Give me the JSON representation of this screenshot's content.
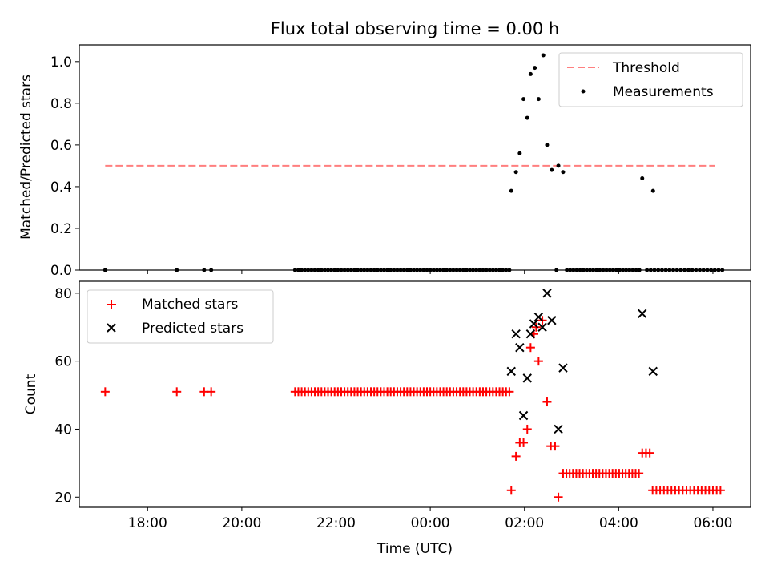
{
  "chart_data": [
    {
      "type": "scatter",
      "title": "Flux total observing time = 0.00 h",
      "ylabel": "Matched/Predicted stars",
      "xlabel": "",
      "xlim_hours": [
        16.55,
        30.8
      ],
      "ylim": [
        0,
        1.08
      ],
      "yticks": [
        0.0,
        0.2,
        0.4,
        0.6,
        0.8,
        1.0
      ],
      "ytick_labels": [
        "0.0",
        "0.2",
        "0.4",
        "0.6",
        "0.8",
        "1.0"
      ],
      "legend_position": "upper-right",
      "threshold": {
        "name": "Threshold",
        "value": 0.5,
        "x_range_hours": [
          17.1,
          30.05
        ],
        "color": "#ff7f7f"
      },
      "measurements": {
        "name": "Measurements",
        "color": "#000000",
        "points": [
          [
            17.1,
            0.0
          ],
          [
            18.62,
            0.0
          ],
          [
            19.2,
            0.0
          ],
          [
            19.35,
            0.0
          ],
          [
            21.13,
            0.0
          ],
          [
            21.2,
            0.0
          ],
          [
            21.27,
            0.0
          ],
          [
            21.34,
            0.0
          ],
          [
            21.41,
            0.0
          ],
          [
            21.48,
            0.0
          ],
          [
            21.55,
            0.0
          ],
          [
            21.62,
            0.0
          ],
          [
            21.69,
            0.0
          ],
          [
            21.76,
            0.0
          ],
          [
            21.83,
            0.0
          ],
          [
            21.9,
            0.0
          ],
          [
            21.97,
            0.0
          ],
          [
            22.04,
            0.0
          ],
          [
            22.11,
            0.0
          ],
          [
            22.18,
            0.0
          ],
          [
            22.25,
            0.0
          ],
          [
            22.32,
            0.0
          ],
          [
            22.39,
            0.0
          ],
          [
            22.46,
            0.0
          ],
          [
            22.53,
            0.0
          ],
          [
            22.6,
            0.0
          ],
          [
            22.67,
            0.0
          ],
          [
            22.74,
            0.0
          ],
          [
            22.81,
            0.0
          ],
          [
            22.88,
            0.0
          ],
          [
            22.95,
            0.0
          ],
          [
            23.02,
            0.0
          ],
          [
            23.09,
            0.0
          ],
          [
            23.16,
            0.0
          ],
          [
            23.23,
            0.0
          ],
          [
            23.3,
            0.0
          ],
          [
            23.37,
            0.0
          ],
          [
            23.44,
            0.0
          ],
          [
            23.51,
            0.0
          ],
          [
            23.58,
            0.0
          ],
          [
            23.65,
            0.0
          ],
          [
            23.72,
            0.0
          ],
          [
            23.79,
            0.0
          ],
          [
            23.86,
            0.0
          ],
          [
            23.93,
            0.0
          ],
          [
            24.0,
            0.0
          ],
          [
            24.07,
            0.0
          ],
          [
            24.14,
            0.0
          ],
          [
            24.21,
            0.0
          ],
          [
            24.28,
            0.0
          ],
          [
            24.35,
            0.0
          ],
          [
            24.42,
            0.0
          ],
          [
            24.49,
            0.0
          ],
          [
            24.56,
            0.0
          ],
          [
            24.63,
            0.0
          ],
          [
            24.7,
            0.0
          ],
          [
            24.77,
            0.0
          ],
          [
            24.84,
            0.0
          ],
          [
            24.91,
            0.0
          ],
          [
            24.98,
            0.0
          ],
          [
            25.05,
            0.0
          ],
          [
            25.12,
            0.0
          ],
          [
            25.19,
            0.0
          ],
          [
            25.26,
            0.0
          ],
          [
            25.33,
            0.0
          ],
          [
            25.4,
            0.0
          ],
          [
            25.47,
            0.0
          ],
          [
            25.54,
            0.0
          ],
          [
            25.61,
            0.0
          ],
          [
            25.68,
            0.0
          ],
          [
            25.72,
            0.38
          ],
          [
            25.82,
            0.47
          ],
          [
            25.9,
            0.56
          ],
          [
            25.98,
            0.82
          ],
          [
            26.06,
            0.73
          ],
          [
            26.13,
            0.94
          ],
          [
            26.22,
            0.97
          ],
          [
            26.3,
            0.82
          ],
          [
            26.4,
            1.03
          ],
          [
            26.48,
            0.6
          ],
          [
            26.58,
            0.48
          ],
          [
            26.68,
            0.0
          ],
          [
            26.72,
            0.5
          ],
          [
            26.82,
            0.47
          ],
          [
            26.9,
            0.0
          ],
          [
            26.97,
            0.0
          ],
          [
            27.04,
            0.0
          ],
          [
            27.11,
            0.0
          ],
          [
            27.18,
            0.0
          ],
          [
            27.25,
            0.0
          ],
          [
            27.32,
            0.0
          ],
          [
            27.39,
            0.0
          ],
          [
            27.46,
            0.0
          ],
          [
            27.53,
            0.0
          ],
          [
            27.6,
            0.0
          ],
          [
            27.67,
            0.0
          ],
          [
            27.74,
            0.0
          ],
          [
            27.81,
            0.0
          ],
          [
            27.88,
            0.0
          ],
          [
            27.95,
            0.0
          ],
          [
            28.02,
            0.0
          ],
          [
            28.09,
            0.0
          ],
          [
            28.16,
            0.0
          ],
          [
            28.23,
            0.0
          ],
          [
            28.3,
            0.0
          ],
          [
            28.37,
            0.0
          ],
          [
            28.44,
            0.0
          ],
          [
            28.5,
            0.44
          ],
          [
            28.73,
            0.38
          ],
          [
            28.6,
            0.0
          ],
          [
            28.68,
            0.0
          ],
          [
            28.76,
            0.0
          ],
          [
            28.84,
            0.0
          ],
          [
            28.92,
            0.0
          ],
          [
            29.0,
            0.0
          ],
          [
            29.08,
            0.0
          ],
          [
            29.16,
            0.0
          ],
          [
            29.24,
            0.0
          ],
          [
            29.32,
            0.0
          ],
          [
            29.4,
            0.0
          ],
          [
            29.48,
            0.0
          ],
          [
            29.56,
            0.0
          ],
          [
            29.64,
            0.0
          ],
          [
            29.72,
            0.0
          ],
          [
            29.8,
            0.0
          ],
          [
            29.88,
            0.0
          ],
          [
            29.96,
            0.0
          ],
          [
            30.04,
            0.0
          ],
          [
            30.12,
            0.0
          ],
          [
            30.2,
            0.0
          ]
        ]
      }
    },
    {
      "type": "scatter",
      "title": "",
      "xlabel": "Time (UTC)",
      "ylabel": "Count",
      "xlim_hours": [
        16.55,
        30.8
      ],
      "ylim": [
        17,
        83.5
      ],
      "xticks_hours": [
        18,
        20,
        22,
        24,
        26,
        28,
        30
      ],
      "xtick_labels": [
        "18:00",
        "20:00",
        "22:00",
        "00:00",
        "02:00",
        "04:00",
        "06:00"
      ],
      "yticks": [
        20,
        40,
        60,
        80
      ],
      "ytick_labels": [
        "20",
        "40",
        "60",
        "80"
      ],
      "legend_position": "upper-left",
      "series": [
        {
          "name": "Matched stars",
          "marker": "plus",
          "color": "#ff0000",
          "points": [
            [
              17.1,
              51
            ],
            [
              18.62,
              51
            ],
            [
              19.2,
              51
            ],
            [
              19.35,
              51
            ],
            [
              21.13,
              51
            ],
            [
              21.2,
              51
            ],
            [
              21.27,
              51
            ],
            [
              21.34,
              51
            ],
            [
              21.41,
              51
            ],
            [
              21.48,
              51
            ],
            [
              21.55,
              51
            ],
            [
              21.62,
              51
            ],
            [
              21.69,
              51
            ],
            [
              21.76,
              51
            ],
            [
              21.83,
              51
            ],
            [
              21.9,
              51
            ],
            [
              21.97,
              51
            ],
            [
              22.04,
              51
            ],
            [
              22.11,
              51
            ],
            [
              22.18,
              51
            ],
            [
              22.25,
              51
            ],
            [
              22.32,
              51
            ],
            [
              22.39,
              51
            ],
            [
              22.46,
              51
            ],
            [
              22.53,
              51
            ],
            [
              22.6,
              51
            ],
            [
              22.67,
              51
            ],
            [
              22.74,
              51
            ],
            [
              22.81,
              51
            ],
            [
              22.88,
              51
            ],
            [
              22.95,
              51
            ],
            [
              23.02,
              51
            ],
            [
              23.09,
              51
            ],
            [
              23.16,
              51
            ],
            [
              23.23,
              51
            ],
            [
              23.3,
              51
            ],
            [
              23.37,
              51
            ],
            [
              23.44,
              51
            ],
            [
              23.51,
              51
            ],
            [
              23.58,
              51
            ],
            [
              23.65,
              51
            ],
            [
              23.72,
              51
            ],
            [
              23.79,
              51
            ],
            [
              23.86,
              51
            ],
            [
              23.93,
              51
            ],
            [
              24.0,
              51
            ],
            [
              24.07,
              51
            ],
            [
              24.14,
              51
            ],
            [
              24.21,
              51
            ],
            [
              24.28,
              51
            ],
            [
              24.35,
              51
            ],
            [
              24.42,
              51
            ],
            [
              24.49,
              51
            ],
            [
              24.56,
              51
            ],
            [
              24.63,
              51
            ],
            [
              24.7,
              51
            ],
            [
              24.77,
              51
            ],
            [
              24.84,
              51
            ],
            [
              24.91,
              51
            ],
            [
              24.98,
              51
            ],
            [
              25.05,
              51
            ],
            [
              25.12,
              51
            ],
            [
              25.19,
              51
            ],
            [
              25.26,
              51
            ],
            [
              25.33,
              51
            ],
            [
              25.4,
              51
            ],
            [
              25.47,
              51
            ],
            [
              25.54,
              51
            ],
            [
              25.61,
              51
            ],
            [
              25.68,
              51
            ],
            [
              25.72,
              22
            ],
            [
              25.82,
              32
            ],
            [
              25.9,
              36
            ],
            [
              25.98,
              36
            ],
            [
              26.06,
              40
            ],
            [
              26.13,
              64
            ],
            [
              26.2,
              68
            ],
            [
              26.25,
              70
            ],
            [
              26.3,
              60
            ],
            [
              26.38,
              72
            ],
            [
              26.48,
              48
            ],
            [
              26.56,
              35
            ],
            [
              26.65,
              35
            ],
            [
              26.72,
              20
            ],
            [
              26.82,
              27
            ],
            [
              26.89,
              27
            ],
            [
              26.96,
              27
            ],
            [
              27.03,
              27
            ],
            [
              27.1,
              27
            ],
            [
              27.17,
              27
            ],
            [
              27.24,
              27
            ],
            [
              27.31,
              27
            ],
            [
              27.38,
              27
            ],
            [
              27.45,
              27
            ],
            [
              27.52,
              27
            ],
            [
              27.59,
              27
            ],
            [
              27.66,
              27
            ],
            [
              27.73,
              27
            ],
            [
              27.8,
              27
            ],
            [
              27.87,
              27
            ],
            [
              27.94,
              27
            ],
            [
              28.01,
              27
            ],
            [
              28.08,
              27
            ],
            [
              28.15,
              27
            ],
            [
              28.22,
              27
            ],
            [
              28.29,
              27
            ],
            [
              28.36,
              27
            ],
            [
              28.43,
              27
            ],
            [
              28.5,
              33
            ],
            [
              28.58,
              33
            ],
            [
              28.66,
              33
            ],
            [
              28.72,
              22
            ],
            [
              28.8,
              22
            ],
            [
              28.88,
              22
            ],
            [
              28.96,
              22
            ],
            [
              29.04,
              22
            ],
            [
              29.12,
              22
            ],
            [
              29.2,
              22
            ],
            [
              29.28,
              22
            ],
            [
              29.36,
              22
            ],
            [
              29.44,
              22
            ],
            [
              29.52,
              22
            ],
            [
              29.6,
              22
            ],
            [
              29.68,
              22
            ],
            [
              29.76,
              22
            ],
            [
              29.84,
              22
            ],
            [
              29.92,
              22
            ],
            [
              30.0,
              22
            ],
            [
              30.08,
              22
            ],
            [
              30.16,
              22
            ]
          ]
        },
        {
          "name": "Predicted stars",
          "marker": "x",
          "color": "#000000",
          "points": [
            [
              25.72,
              57
            ],
            [
              25.82,
              68
            ],
            [
              25.9,
              64
            ],
            [
              25.98,
              44
            ],
            [
              26.06,
              55
            ],
            [
              26.13,
              68
            ],
            [
              26.2,
              71
            ],
            [
              26.3,
              73
            ],
            [
              26.38,
              70
            ],
            [
              26.48,
              80
            ],
            [
              26.58,
              72
            ],
            [
              26.72,
              40
            ],
            [
              26.82,
              58
            ],
            [
              28.5,
              74
            ],
            [
              28.73,
              57
            ]
          ]
        }
      ]
    }
  ]
}
